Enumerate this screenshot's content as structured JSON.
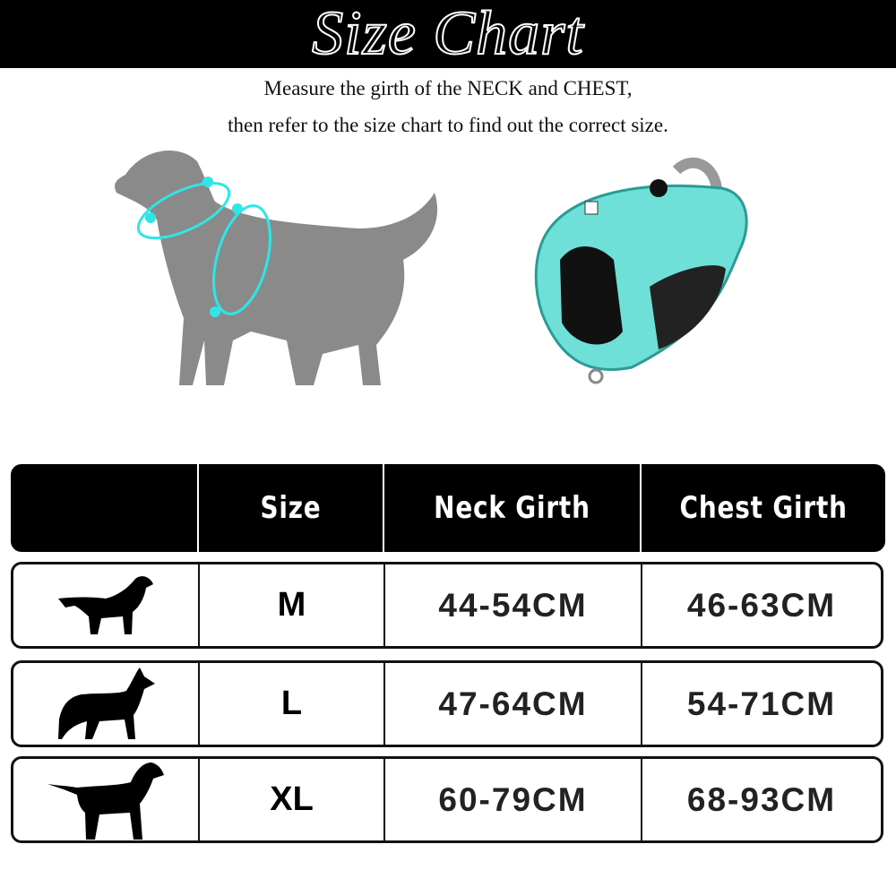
{
  "header": {
    "title": "Size Chart"
  },
  "instructions": {
    "line1": "Measure the girth of the NECK and CHEST,",
    "line2": "then refer to the size chart to find out the correct size."
  },
  "colors": {
    "accent": "#2ee6e6",
    "harness": "#6fe0d8",
    "dog_gray": "#8a8a8a"
  },
  "table": {
    "headers": [
      "",
      "Size",
      "Neck Girth",
      "Chest Girth"
    ],
    "rows": [
      {
        "icon": "medium-dog-silhouette-icon",
        "size": "M",
        "neck": "44-54CM",
        "chest": "46-63CM"
      },
      {
        "icon": "large-dog-silhouette-icon",
        "size": "L",
        "neck": "47-64CM",
        "chest": "54-71CM"
      },
      {
        "icon": "xl-dog-silhouette-icon",
        "size": "XL",
        "neck": "60-79CM",
        "chest": "68-93CM"
      }
    ]
  }
}
